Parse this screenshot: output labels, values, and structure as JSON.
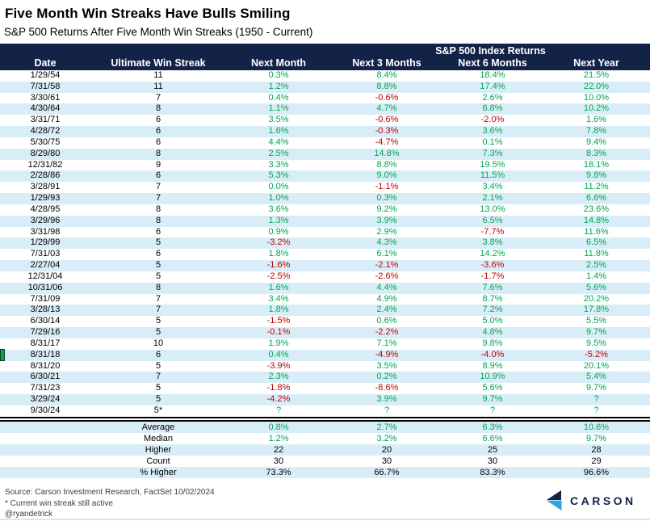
{
  "header": {
    "title": "Five Month Win Streaks Have Bulls Smiling",
    "subtitle": "S&P 500 Returns After Five Month Win Streaks (1950 - Current)"
  },
  "chart_data": {
    "type": "table",
    "title": "Five Month Win Streaks Have Bulls Smiling",
    "subtitle": "S&P 500 Returns After Five Month Win Streaks (1950 - Current)",
    "group_header": "S&P 500 Index Returns",
    "columns": [
      "Date",
      "Ultimate Win Streak",
      "Next Month",
      "Next 3 Months",
      "Next 6 Months",
      "Next Year"
    ],
    "rows": [
      [
        "1/29/54",
        "11",
        "0.3%",
        "8.4%",
        "18.4%",
        "21.5%"
      ],
      [
        "7/31/58",
        "11",
        "1.2%",
        "8.8%",
        "17.4%",
        "22.0%"
      ],
      [
        "3/30/61",
        "7",
        "0.4%",
        "-0.6%",
        "2.6%",
        "10.0%"
      ],
      [
        "4/30/64",
        "8",
        "1.1%",
        "4.7%",
        "6.8%",
        "10.2%"
      ],
      [
        "3/31/71",
        "6",
        "3.5%",
        "-0.6%",
        "-2.0%",
        "1.6%"
      ],
      [
        "4/28/72",
        "6",
        "1.6%",
        "-0.3%",
        "3.6%",
        "7.8%"
      ],
      [
        "5/30/75",
        "6",
        "4.4%",
        "-4.7%",
        "0.1%",
        "9.4%"
      ],
      [
        "8/29/80",
        "8",
        "2.5%",
        "14.8%",
        "7.3%",
        "8.3%"
      ],
      [
        "12/31/82",
        "9",
        "3.3%",
        "8.8%",
        "19.5%",
        "18.1%"
      ],
      [
        "2/28/86",
        "6",
        "5.3%",
        "9.0%",
        "11.5%",
        "9.8%"
      ],
      [
        "3/28/91",
        "7",
        "0.0%",
        "-1.1%",
        "3.4%",
        "11.2%"
      ],
      [
        "1/29/93",
        "7",
        "1.0%",
        "0.3%",
        "2.1%",
        "6.6%"
      ],
      [
        "4/28/95",
        "8",
        "3.6%",
        "9.2%",
        "13.0%",
        "23.6%"
      ],
      [
        "3/29/96",
        "8",
        "1.3%",
        "3.9%",
        "6.5%",
        "14.8%"
      ],
      [
        "3/31/98",
        "6",
        "0.9%",
        "2.9%",
        "-7.7%",
        "11.6%"
      ],
      [
        "1/29/99",
        "5",
        "-3.2%",
        "4.3%",
        "3.8%",
        "6.5%"
      ],
      [
        "7/31/03",
        "6",
        "1.8%",
        "6.1%",
        "14.2%",
        "11.8%"
      ],
      [
        "2/27/04",
        "5",
        "-1.6%",
        "-2.1%",
        "-3.6%",
        "2.5%"
      ],
      [
        "12/31/04",
        "5",
        "-2.5%",
        "-2.6%",
        "-1.7%",
        "1.4%"
      ],
      [
        "10/31/06",
        "8",
        "1.6%",
        "4.4%",
        "7.6%",
        "5.6%"
      ],
      [
        "7/31/09",
        "7",
        "3.4%",
        "4.9%",
        "8.7%",
        "20.2%"
      ],
      [
        "3/28/13",
        "7",
        "1.8%",
        "2.4%",
        "7.2%",
        "17.8%"
      ],
      [
        "6/30/14",
        "5",
        "-1.5%",
        "0.6%",
        "5.0%",
        "5.5%"
      ],
      [
        "7/29/16",
        "5",
        "-0.1%",
        "-2.2%",
        "4.8%",
        "9.7%"
      ],
      [
        "8/31/17",
        "10",
        "1.9%",
        "7.1%",
        "9.8%",
        "9.5%"
      ],
      [
        "8/31/18",
        "6",
        "0.4%",
        "-4.9%",
        "-4.0%",
        "-5.2%"
      ],
      [
        "8/31/20",
        "5",
        "-3.9%",
        "3.5%",
        "8.9%",
        "20.1%"
      ],
      [
        "6/30/21",
        "7",
        "2.3%",
        "0.2%",
        "10.9%",
        "5.4%"
      ],
      [
        "7/31/23",
        "5",
        "-1.8%",
        "-8.6%",
        "5.6%",
        "9.7%"
      ],
      [
        "3/29/24",
        "5",
        "-4.2%",
        "3.9%",
        "9.7%",
        "?"
      ],
      [
        "9/30/24",
        "5*",
        "?",
        "?",
        "?",
        "?"
      ]
    ],
    "marker_row_index": 25,
    "summary_rows": [
      {
        "label": "Average",
        "values": [
          "0.8%",
          "2.7%",
          "6.3%",
          "10.6%"
        ],
        "green": true
      },
      {
        "label": "Median",
        "values": [
          "1.2%",
          "3.2%",
          "6.6%",
          "9.7%"
        ],
        "green": true
      },
      {
        "label": "Higher",
        "values": [
          "22",
          "20",
          "25",
          "28"
        ],
        "green": false
      },
      {
        "label": "Count",
        "values": [
          "30",
          "30",
          "30",
          "29"
        ],
        "green": false
      },
      {
        "label": "% Higher",
        "values": [
          "73.3%",
          "66.7%",
          "83.3%",
          "96.6%"
        ],
        "green": false
      }
    ]
  },
  "footer": {
    "source": "Source: Carson Investment Research, FactSet 10/02/2024",
    "note": "* Current win streak still active",
    "handle": "@ryandetrick"
  },
  "logo": {
    "wordmark": "CARSON"
  },
  "colors": {
    "header_bg": "#132348",
    "row_alt": "#d9edf8",
    "positive_green": "#00a651",
    "negative_red": "#c00000",
    "logo_navy": "#132348",
    "logo_blue": "#2ba7df",
    "bottom_rule": "#cfe9f5"
  }
}
